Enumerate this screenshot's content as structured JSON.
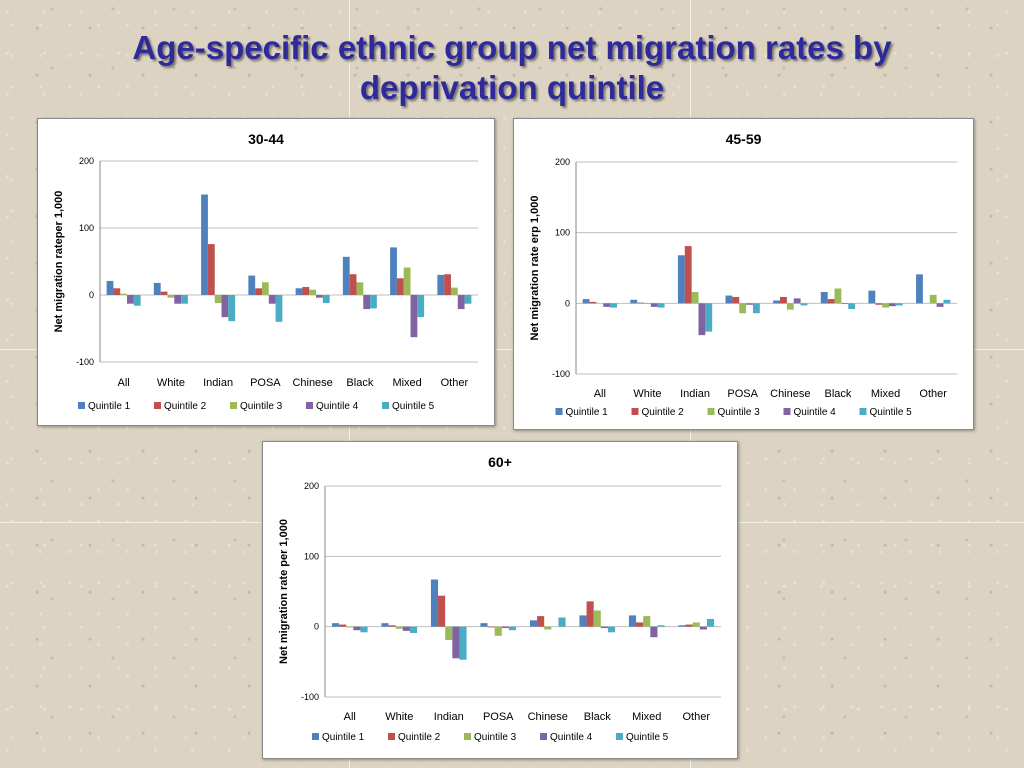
{
  "slide": {
    "title_line1": "Age-specific ethnic group net migration rates by",
    "title_line2": "deprivation quintile"
  },
  "colors": {
    "Quintile 1": "#4f81bd",
    "Quintile 2": "#c0504d",
    "Quintile 3": "#9bbb59",
    "Quintile 4": "#8064a2",
    "Quintile 5": "#4bacc6"
  },
  "chart_data": [
    {
      "type": "bar",
      "title": "30-44",
      "ylabel": "Net migration rateper 1,000",
      "xlabel": "",
      "ylim": [
        -100,
        200
      ],
      "yticks": [
        -100,
        0,
        100,
        200
      ],
      "categories": [
        "All",
        "White",
        "Indian",
        "POSA",
        "Chinese",
        "Black",
        "Mixed",
        "Other"
      ],
      "legend_position": "bottom",
      "grid": true,
      "series": [
        {
          "name": "Quintile 1",
          "values": [
            21,
            18,
            150,
            29,
            10,
            57,
            71,
            30
          ]
        },
        {
          "name": "Quintile 2",
          "values": [
            10,
            5,
            76,
            10,
            12,
            31,
            25,
            31
          ]
        },
        {
          "name": "Quintile 3",
          "values": [
            2,
            -4,
            -12,
            19,
            8,
            19,
            41,
            11
          ]
        },
        {
          "name": "Quintile 4",
          "values": [
            -13,
            -13,
            -33,
            -13,
            -4,
            -21,
            -63,
            -21
          ]
        },
        {
          "name": "Quintile 5",
          "values": [
            -16,
            -13,
            -39,
            -40,
            -12,
            -20,
            -33,
            -13
          ]
        }
      ]
    },
    {
      "type": "bar",
      "title": "45-59",
      "ylabel": "Net migration rate erp 1,000",
      "xlabel": "",
      "ylim": [
        -100,
        200
      ],
      "yticks": [
        -100,
        0,
        100,
        200
      ],
      "categories": [
        "All",
        "White",
        "Indian",
        "POSA",
        "Chinese",
        "Black",
        "Mixed",
        "Other"
      ],
      "legend_position": "bottom",
      "grid": true,
      "series": [
        {
          "name": "Quintile 1",
          "values": [
            6,
            5,
            68,
            11,
            4,
            16,
            18,
            41
          ]
        },
        {
          "name": "Quintile 2",
          "values": [
            2,
            1,
            81,
            9,
            9,
            6,
            -2,
            0
          ]
        },
        {
          "name": "Quintile 3",
          "values": [
            0,
            -1,
            16,
            -14,
            -9,
            21,
            -6,
            12
          ]
        },
        {
          "name": "Quintile 4",
          "values": [
            -5,
            -5,
            -45,
            -2,
            7,
            -1,
            -4,
            -5
          ]
        },
        {
          "name": "Quintile 5",
          "values": [
            -6,
            -6,
            -40,
            -14,
            -3,
            -8,
            -3,
            5
          ]
        }
      ]
    },
    {
      "type": "bar",
      "title": "60+",
      "ylabel": "Net migration rate per 1,000",
      "xlabel": "",
      "ylim": [
        -100,
        200
      ],
      "yticks": [
        -100,
        0,
        100,
        200
      ],
      "categories": [
        "All",
        "White",
        "Indian",
        "POSA",
        "Chinese",
        "Black",
        "Mixed",
        "Other"
      ],
      "legend_position": "bottom",
      "grid": true,
      "series": [
        {
          "name": "Quintile 1",
          "values": [
            5,
            5,
            67,
            5,
            9,
            16,
            16,
            2
          ]
        },
        {
          "name": "Quintile 2",
          "values": [
            3,
            2,
            44,
            -1,
            15,
            36,
            6,
            3
          ]
        },
        {
          "name": "Quintile 3",
          "values": [
            -1,
            -3,
            -19,
            -13,
            -4,
            23,
            15,
            6
          ]
        },
        {
          "name": "Quintile 4",
          "values": [
            -5,
            -6,
            -45,
            -2,
            0,
            -2,
            -15,
            -4
          ]
        },
        {
          "name": "Quintile 5",
          "values": [
            -8,
            -9,
            -47,
            -5,
            13,
            -8,
            2,
            11
          ]
        }
      ]
    }
  ]
}
